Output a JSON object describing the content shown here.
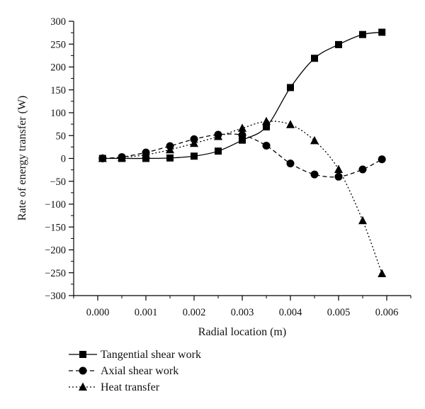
{
  "chart_data": {
    "type": "line",
    "title": "",
    "xlabel": "Radial location (m)",
    "ylabel": "Rate of energy transfer (W)",
    "xlim": [
      -0.0005,
      0.0065
    ],
    "ylim": [
      -300,
      300
    ],
    "xticks": [
      "0.000",
      "0.001",
      "0.002",
      "0.003",
      "0.004",
      "0.005",
      "0.006"
    ],
    "xtick_values": [
      0.0,
      0.001,
      0.002,
      0.003,
      0.004,
      0.005,
      0.006
    ],
    "yticks": [
      "300",
      "250",
      "200",
      "150",
      "100",
      "50",
      "0",
      "−50",
      "−100",
      "−150",
      "−200",
      "−250",
      "−300"
    ],
    "ytick_values": [
      300,
      250,
      200,
      150,
      100,
      50,
      0,
      -50,
      -100,
      -150,
      -200,
      -250,
      -300
    ],
    "grid": false,
    "legend_position": "bottom-left",
    "series": [
      {
        "name": "Tangential shear work",
        "marker": "square",
        "line_style": "solid",
        "color": "#000000",
        "x": [
          0.0001,
          0.0005,
          0.001,
          0.0015,
          0.002,
          0.0025,
          0.003,
          0.0035,
          0.004,
          0.0045,
          0.005,
          0.0055,
          0.0059
        ],
        "y": [
          0,
          0,
          0,
          1,
          5,
          16,
          40,
          69,
          155,
          219,
          249,
          271,
          276
        ]
      },
      {
        "name": "Axial shear work",
        "marker": "circle",
        "line_style": "dashed",
        "color": "#000000",
        "x": [
          0.0001,
          0.0005,
          0.001,
          0.0015,
          0.002,
          0.0025,
          0.003,
          0.0035,
          0.004,
          0.0045,
          0.005,
          0.0055,
          0.0059
        ],
        "y": [
          0,
          3,
          13,
          27,
          42,
          52,
          51,
          28,
          -11,
          -35,
          -40,
          -24,
          -2
        ]
      },
      {
        "name": "Heat transfer",
        "marker": "triangle",
        "line_style": "dotted",
        "color": "#000000",
        "x": [
          0.0001,
          0.0005,
          0.001,
          0.0015,
          0.002,
          0.0025,
          0.003,
          0.0035,
          0.004,
          0.0045,
          0.005,
          0.0055,
          0.0059
        ],
        "y": [
          0,
          2,
          8,
          19,
          33,
          48,
          66,
          81,
          74,
          39,
          -24,
          -136,
          -252
        ]
      }
    ]
  }
}
